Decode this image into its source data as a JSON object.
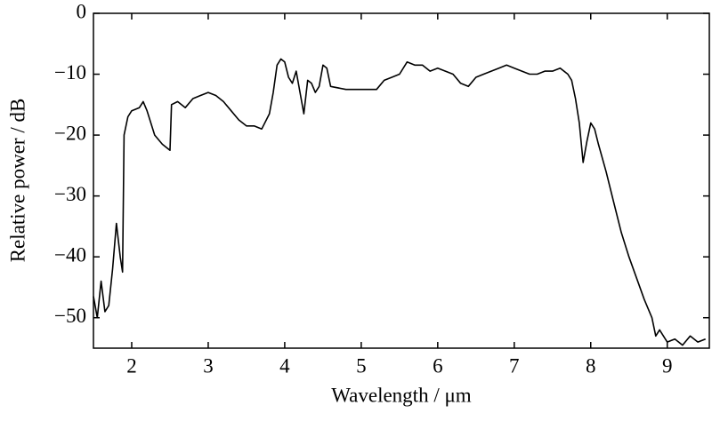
{
  "chart_data": {
    "type": "line",
    "x_label": "Wavelength / μm",
    "y_label": "Relative power / dB",
    "xlim": [
      1.5,
      9.55
    ],
    "ylim": [
      -55,
      0
    ],
    "xticks": [
      2,
      3,
      4,
      5,
      6,
      7,
      8,
      9
    ],
    "yticks": [
      0,
      {
        "value": -10,
        "label": "−10"
      },
      {
        "value": -20,
        "label": "−20"
      },
      {
        "value": -30,
        "label": "−30"
      },
      {
        "value": -40,
        "label": "−40"
      },
      {
        "value": -50,
        "label": "−50"
      }
    ],
    "x": [
      1.5,
      1.55,
      1.6,
      1.65,
      1.7,
      1.75,
      1.8,
      1.85,
      1.88,
      1.9,
      1.95,
      2.0,
      2.1,
      2.15,
      2.2,
      2.3,
      2.4,
      2.5,
      2.52,
      2.6,
      2.7,
      2.8,
      2.9,
      3.0,
      3.1,
      3.2,
      3.3,
      3.4,
      3.5,
      3.6,
      3.7,
      3.8,
      3.85,
      3.9,
      3.95,
      4.0,
      4.05,
      4.1,
      4.15,
      4.2,
      4.25,
      4.3,
      4.35,
      4.4,
      4.45,
      4.5,
      4.55,
      4.6,
      4.8,
      5.0,
      5.2,
      5.3,
      5.4,
      5.5,
      5.6,
      5.7,
      5.8,
      5.9,
      6.0,
      6.1,
      6.2,
      6.3,
      6.4,
      6.5,
      6.6,
      6.7,
      6.8,
      6.9,
      7.0,
      7.1,
      7.2,
      7.3,
      7.4,
      7.5,
      7.6,
      7.7,
      7.75,
      7.8,
      7.85,
      7.9,
      7.95,
      8.0,
      8.05,
      8.1,
      8.2,
      8.3,
      8.4,
      8.5,
      8.6,
      8.7,
      8.8,
      8.85,
      8.9,
      9.0,
      9.1,
      9.2,
      9.3,
      9.4,
      9.5
    ],
    "series": [
      {
        "color": "#000000",
        "values": [
          -46.5,
          -50,
          -44,
          -49,
          -48,
          -42,
          -34.5,
          -40,
          -42.5,
          -20,
          -17,
          -16,
          -15.5,
          -14.5,
          -16,
          -20,
          -21.5,
          -22.5,
          -15,
          -14.5,
          -15.5,
          -14,
          -13.5,
          -13,
          -13.5,
          -14.5,
          -16,
          -17.5,
          -18.5,
          -18.5,
          -19,
          -16.5,
          -13,
          -8.5,
          -7.5,
          -8,
          -10.5,
          -11.5,
          -9.5,
          -13,
          -16.5,
          -11,
          -11.5,
          -13,
          -12,
          -8.5,
          -9,
          -12,
          -12.5,
          -12.5,
          -12.5,
          -11,
          -10.5,
          -10,
          -8,
          -8.5,
          -8.5,
          -9.5,
          -9,
          -9.5,
          -10,
          -11.5,
          -12,
          -10.5,
          -10,
          -9.5,
          -9,
          -8.5,
          -9,
          -9.5,
          -10,
          -10,
          -9.5,
          -9.5,
          -9,
          -10,
          -11,
          -14,
          -18,
          -24.5,
          -21,
          -18,
          -19,
          -21.5,
          -26,
          -31,
          -36,
          -40,
          -43.5,
          -47,
          -50,
          -53,
          -52,
          -54,
          -53.5,
          -54.5,
          -53,
          -54,
          -53.5
        ]
      }
    ]
  }
}
